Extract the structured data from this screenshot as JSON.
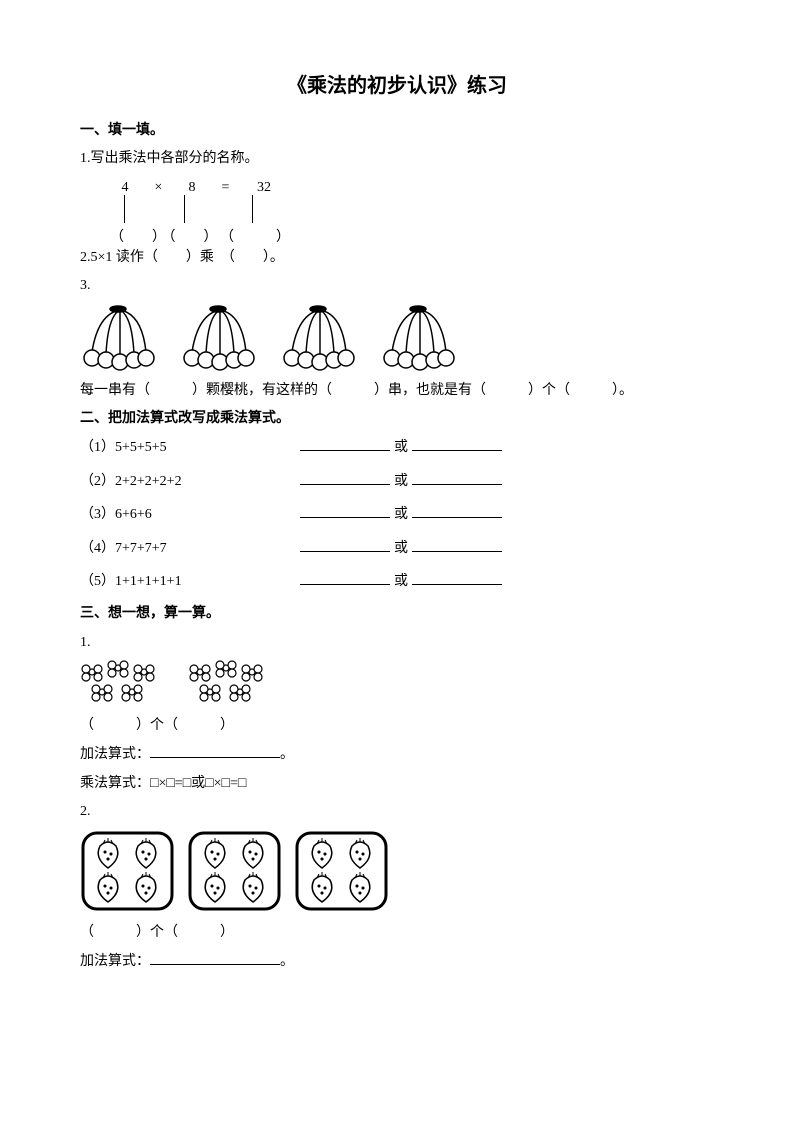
{
  "title": "《乘法的初步认识》练习",
  "s1": {
    "head": "一、填一填。",
    "q1": {
      "label": "1.写出乘法中各部分的名称。",
      "a": "4",
      "op": "×",
      "b": "8",
      "eq": "=",
      "c": "32",
      "p1": "（　　）",
      "p2": "（　　）",
      "p3": "（　　　）"
    },
    "q2": "2.5×1 读作（　　）乘　（　　）。",
    "q3num": "3.",
    "q3text": "每一串有（　　　）颗樱桃，有这样的（　　　）串，也就是有（　　　）个（　　　）。"
  },
  "s2": {
    "head": "二、把加法算式改写成乘法算式。",
    "or": "或",
    "items": [
      {
        "n": "（1）5+5+5+5"
      },
      {
        "n": "（2）2+2+2+2+2"
      },
      {
        "n": "（3）6+6+6"
      },
      {
        "n": "（4）7+7+7+7"
      },
      {
        "n": "（5）1+1+1+1+1"
      }
    ]
  },
  "s3": {
    "head": "三、想一想，算一算。",
    "q1num": "1.",
    "count": "（　　　）个（　　　）",
    "addlabel": "加法算式：",
    "addend": "。",
    "mult": "乘法算式：□×□=□或□×□=□",
    "q2num": "2."
  },
  "colors": {
    "stroke": "#000000",
    "bg": "#ffffff"
  }
}
